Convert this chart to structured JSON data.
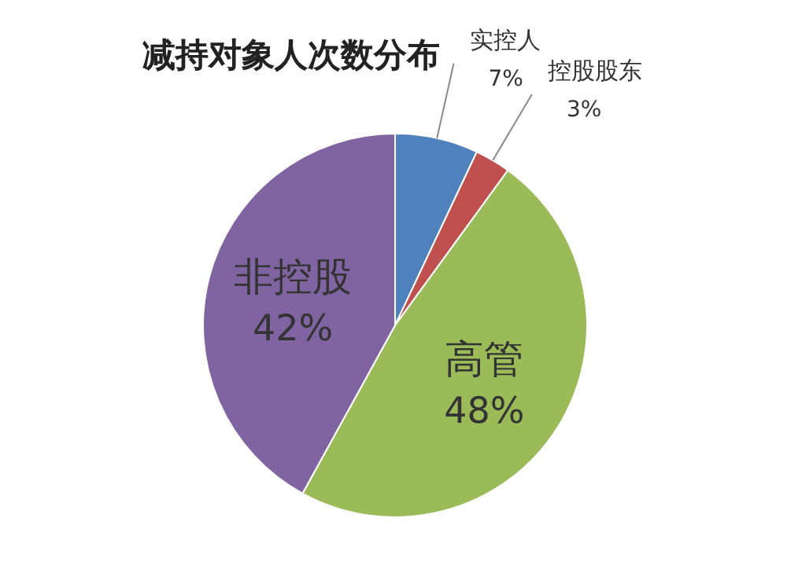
{
  "chart_data": {
    "type": "pie",
    "title": "减持对象人次数分布",
    "categories": [
      "实控人",
      "控股股东",
      "高管",
      "非控股"
    ],
    "values": [
      7,
      3,
      48,
      42
    ],
    "value_labels": [
      "7%",
      "3%",
      "48%",
      "42%"
    ],
    "colors": [
      "#4f81bd",
      "#c0504d",
      "#9bbb59",
      "#8064a2"
    ]
  }
}
